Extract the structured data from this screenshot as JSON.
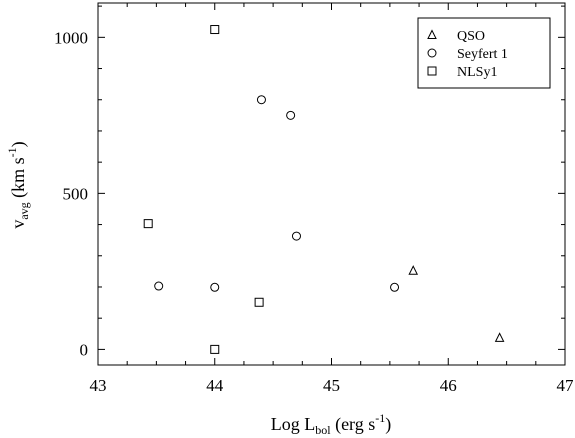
{
  "chart_data": {
    "type": "scatter",
    "title": "",
    "xlabel": {
      "prefix": "Log L",
      "sub": "bol",
      "suffix": " (erg s",
      "sup": "-1",
      "close": ")"
    },
    "ylabel": {
      "prefix": "v",
      "sub": "avg",
      "suffix": " (km s",
      "sup": "-1",
      "close": ")"
    },
    "xlim": [
      43,
      47
    ],
    "ylim": [
      -50,
      1110
    ],
    "xticks": [
      "43",
      "44",
      "45",
      "46",
      "47"
    ],
    "yticks": [
      "0",
      "500",
      "1000"
    ],
    "grid": false,
    "legend_position": "top-right",
    "series": [
      {
        "name": "QSO",
        "marker": "triangle",
        "x": [
          45.7,
          46.44
        ],
        "y": [
          252,
          37
        ]
      },
      {
        "name": "Seyfert 1",
        "marker": "circle",
        "x": [
          43.52,
          44.0,
          44.4,
          44.65,
          44.7,
          45.54
        ],
        "y": [
          203,
          199,
          800,
          750,
          363,
          199
        ]
      },
      {
        "name": "NLSy1",
        "marker": "square",
        "x": [
          43.43,
          44.0,
          44.38,
          44.0
        ],
        "y": [
          403,
          1025,
          151,
          0
        ]
      }
    ]
  }
}
